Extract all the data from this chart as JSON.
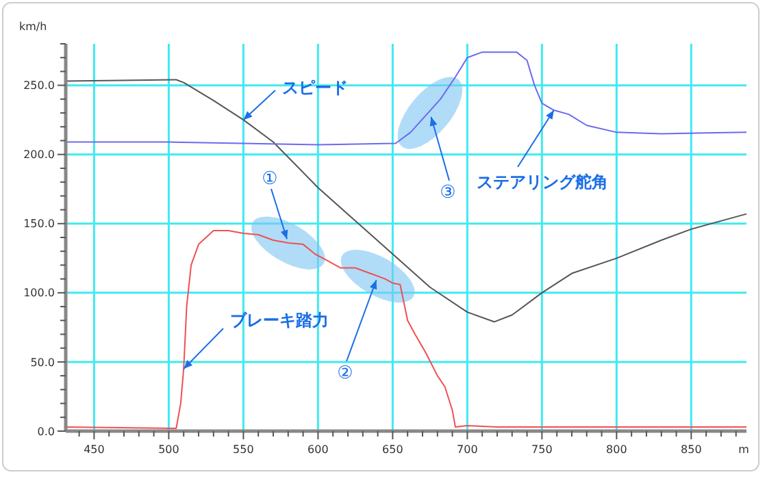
{
  "chart_data": {
    "type": "line",
    "xlabel": "m",
    "ylabel": "km/h",
    "xlim": [
      431,
      887
    ],
    "ylim": [
      0,
      280
    ],
    "xticks": [
      {
        "value": 440,
        "label": null
      },
      {
        "value": 450,
        "label": "450"
      },
      {
        "value": 460,
        "label": null
      },
      {
        "value": 470,
        "label": null
      },
      {
        "value": 480,
        "label": null
      },
      {
        "value": 490,
        "label": null
      },
      {
        "value": 500,
        "label": "500"
      },
      {
        "value": 510,
        "label": null
      },
      {
        "value": 520,
        "label": null
      },
      {
        "value": 530,
        "label": null
      },
      {
        "value": 540,
        "label": null
      },
      {
        "value": 550,
        "label": "550"
      },
      {
        "value": 560,
        "label": null
      },
      {
        "value": 570,
        "label": null
      },
      {
        "value": 580,
        "label": null
      },
      {
        "value": 590,
        "label": null
      },
      {
        "value": 600,
        "label": "600"
      },
      {
        "value": 610,
        "label": null
      },
      {
        "value": 620,
        "label": null
      },
      {
        "value": 630,
        "label": null
      },
      {
        "value": 640,
        "label": null
      },
      {
        "value": 650,
        "label": "650"
      },
      {
        "value": 660,
        "label": null
      },
      {
        "value": 670,
        "label": null
      },
      {
        "value": 680,
        "label": null
      },
      {
        "value": 690,
        "label": null
      },
      {
        "value": 700,
        "label": "700"
      },
      {
        "value": 710,
        "label": null
      },
      {
        "value": 720,
        "label": null
      },
      {
        "value": 730,
        "label": null
      },
      {
        "value": 740,
        "label": null
      },
      {
        "value": 750,
        "label": "750"
      },
      {
        "value": 760,
        "label": null
      },
      {
        "value": 770,
        "label": null
      },
      {
        "value": 780,
        "label": null
      },
      {
        "value": 790,
        "label": null
      },
      {
        "value": 800,
        "label": "800"
      },
      {
        "value": 810,
        "label": null
      },
      {
        "value": 820,
        "label": null
      },
      {
        "value": 830,
        "label": null
      },
      {
        "value": 840,
        "label": null
      },
      {
        "value": 850,
        "label": "850"
      },
      {
        "value": 860,
        "label": null
      },
      {
        "value": 870,
        "label": null
      },
      {
        "value": 880,
        "label": null
      }
    ],
    "yticks": [
      {
        "value": 0,
        "label": "0.0"
      },
      {
        "value": 10,
        "label": null
      },
      {
        "value": 20,
        "label": null
      },
      {
        "value": 30,
        "label": null
      },
      {
        "value": 40,
        "label": null
      },
      {
        "value": 50,
        "label": "50.0"
      },
      {
        "value": 60,
        "label": null
      },
      {
        "value": 70,
        "label": null
      },
      {
        "value": 80,
        "label": null
      },
      {
        "value": 90,
        "label": null
      },
      {
        "value": 100,
        "label": "100.0"
      },
      {
        "value": 110,
        "label": null
      },
      {
        "value": 120,
        "label": null
      },
      {
        "value": 130,
        "label": null
      },
      {
        "value": 140,
        "label": null
      },
      {
        "value": 150,
        "label": "150.0"
      },
      {
        "value": 160,
        "label": null
      },
      {
        "value": 170,
        "label": null
      },
      {
        "value": 180,
        "label": null
      },
      {
        "value": 190,
        "label": null
      },
      {
        "value": 200,
        "label": "200.0"
      },
      {
        "value": 210,
        "label": null
      },
      {
        "value": 220,
        "label": null
      },
      {
        "value": 230,
        "label": null
      },
      {
        "value": 240,
        "label": null
      },
      {
        "value": 250,
        "label": "250.0"
      },
      {
        "value": 260,
        "label": null
      },
      {
        "value": 270,
        "label": null
      },
      {
        "value": 280,
        "label": null
      }
    ],
    "grid": true,
    "line_style": "solid",
    "series": [
      {
        "name": "スピード",
        "color": "#555555",
        "x": [
          431,
          505,
          510,
          530,
          550,
          570,
          600,
          625,
          650,
          675,
          700,
          718,
          730,
          750,
          770,
          800,
          830,
          850,
          887
        ],
        "values": [
          253,
          254,
          252,
          239,
          225,
          209,
          176,
          152,
          128,
          104,
          86,
          79,
          84,
          100,
          114,
          125,
          138,
          146,
          157
        ]
      },
      {
        "name": "ステアリング舵角",
        "color": "#6a6aee",
        "x": [
          431,
          500,
          600,
          652,
          662,
          672,
          682,
          692,
          700,
          710,
          733,
          740,
          745,
          750,
          758,
          768,
          780,
          800,
          830,
          887
        ],
        "values": [
          209,
          209,
          207,
          208,
          216,
          228,
          240,
          256,
          270,
          274,
          274,
          268,
          250,
          237,
          232,
          229,
          221,
          216,
          215,
          216
        ]
      },
      {
        "name": "ブレーキ踏力",
        "color": "#f05050",
        "x": [
          431,
          505,
          508,
          510,
          512,
          515,
          520,
          530,
          540,
          550,
          560,
          570,
          580,
          590,
          598,
          605,
          615,
          625,
          635,
          645,
          650,
          655,
          660,
          665,
          672,
          680,
          685,
          690,
          692,
          700,
          720,
          750,
          800,
          850,
          887
        ],
        "values": [
          3,
          2,
          20,
          45,
          90,
          120,
          135,
          145,
          145,
          143,
          142,
          138,
          136,
          135,
          128,
          124,
          118,
          118,
          114,
          110,
          107,
          106,
          80,
          70,
          57,
          40,
          32,
          15,
          3,
          4,
          3,
          3,
          3,
          3,
          3
        ]
      }
    ],
    "annotations": [
      {
        "text": "①",
        "x": 580,
        "y": 136
      },
      {
        "text": "②",
        "x": 640,
        "y": 112
      },
      {
        "text": "③",
        "x": 675,
        "y": 230
      }
    ]
  }
}
